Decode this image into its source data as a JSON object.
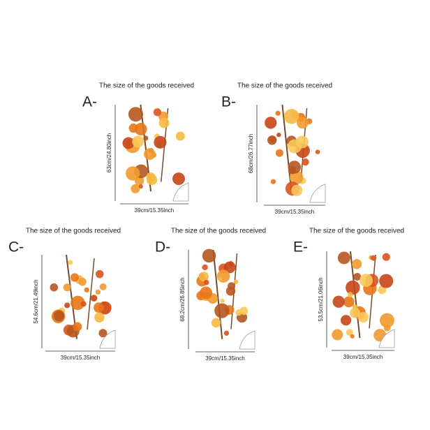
{
  "items": [
    {
      "caption": "The size of the goods received",
      "letter": "A-",
      "height": "63cm/24.80inch",
      "width": "39cm/15.35inch"
    },
    {
      "caption": "The size of the goods received",
      "letter": "B-",
      "height": "68cm/26.77inch",
      "width": "39cm/15.35inch"
    },
    {
      "caption": "The size of the goods received",
      "letter": "C-",
      "height": "54.6cm/21.49inch",
      "width": "39cm/15.35inch"
    },
    {
      "caption": "The size of the goods received",
      "letter": "D-",
      "height": "68.2cm/26.85inch",
      "width": "39cm/15.35inch"
    },
    {
      "caption": "The size of the goods received",
      "letter": "E-",
      "height": "53.5cm/21.06inch",
      "width": "39cm/15.35inch"
    }
  ]
}
